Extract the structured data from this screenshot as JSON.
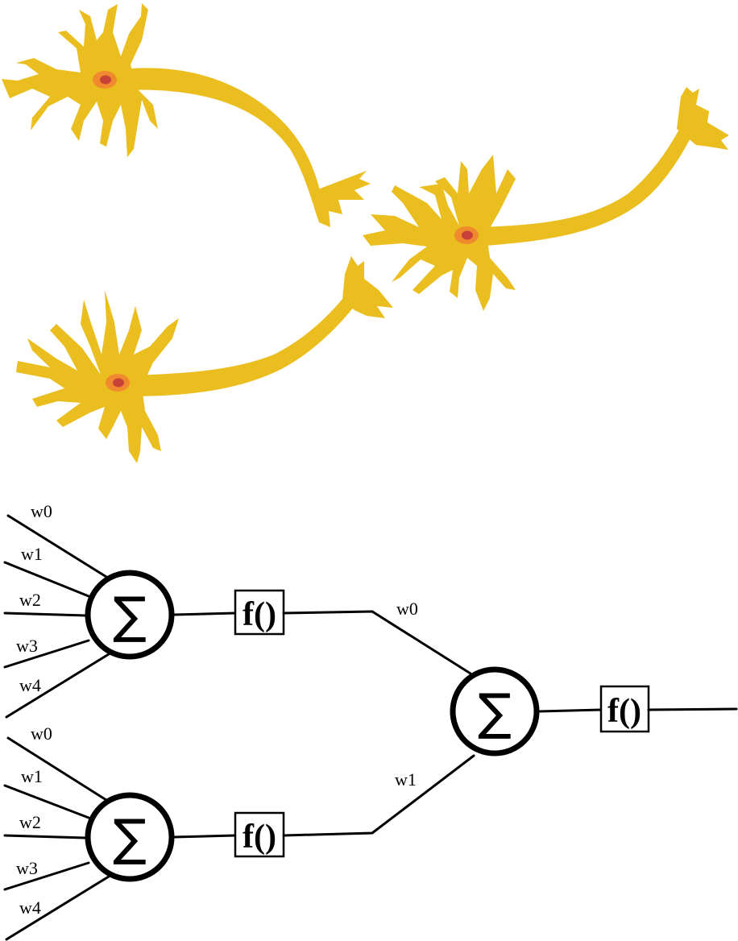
{
  "palette": {
    "neuron": "#ebbe1f",
    "nucleus_outer": "#f08a2e",
    "nucleus_inner": "#c9423a",
    "ink": "#000000"
  },
  "network": {
    "input_neuron_top": {
      "sum_symbol": "∑",
      "weights": [
        "w0",
        "w1",
        "w2",
        "w3",
        "w4"
      ],
      "activation": "f()"
    },
    "input_neuron_bottom": {
      "sum_symbol": "∑",
      "weights": [
        "w0",
        "w1",
        "w2",
        "w3",
        "w4"
      ],
      "activation": "f()"
    },
    "output_neuron": {
      "sum_symbol": "∑",
      "weights": [
        "w0",
        "w1"
      ],
      "activation": "f()"
    }
  }
}
